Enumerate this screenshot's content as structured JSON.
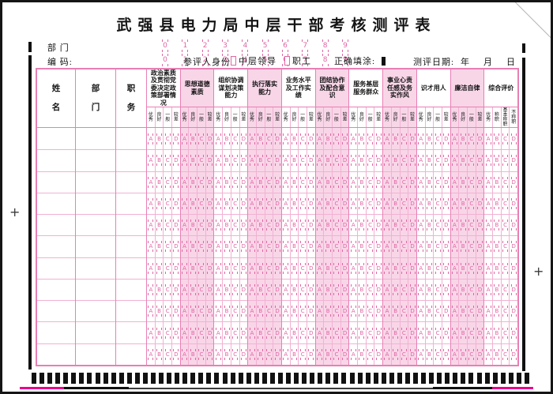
{
  "title": "武强县电力局中层干部考核测评表",
  "colors": {
    "accent_pink": "#e87fb4",
    "pink_background": "#f8d6e8",
    "bubble_pink": "#e066a4",
    "registration_magenta": "#ec008c",
    "timing_mark_black": "#111111"
  },
  "header": {
    "dept_label": "部 门",
    "code_label": "编 码:",
    "digits": [
      "0",
      "1",
      "2",
      "3",
      "4",
      "5",
      "6",
      "7",
      "8",
      "9"
    ],
    "identity_label": "参评人身份:",
    "identity_options": [
      {
        "label": "中层领导"
      },
      {
        "label": "职工"
      }
    ],
    "fill_label": "正确填涂:",
    "date_label": "测评日期:",
    "date_units": [
      "年",
      "月",
      "日"
    ]
  },
  "table": {
    "left_columns": [
      {
        "label": "姓名"
      },
      {
        "label": "部门"
      },
      {
        "label": "职务"
      }
    ],
    "left_column_widths": [
      49,
      51,
      39
    ],
    "categories": [
      {
        "name": "政治素质及贯彻党委决定政策部署情况",
        "subs": [
          "优秀",
          "良好",
          "一般",
          "较差"
        ]
      },
      {
        "name": "思想道德素质",
        "subs": [
          "优秀",
          "良好",
          "一般",
          "较差"
        ]
      },
      {
        "name": "组织协调谋划决策能力",
        "subs": [
          "优秀",
          "良好",
          "一般",
          "较差"
        ]
      },
      {
        "name": "执行落实能力",
        "subs": [
          "优秀",
          "良好",
          "一般",
          "较差"
        ]
      },
      {
        "name": "业务水平及工作实绩",
        "subs": [
          "优秀",
          "良好",
          "一般",
          "较差"
        ]
      },
      {
        "name": "团结协作及配合意识",
        "subs": [
          "优秀",
          "良好",
          "一般",
          "较差"
        ]
      },
      {
        "name": "服务基层服务群众",
        "subs": [
          "优秀",
          "良好",
          "一般",
          "较差"
        ]
      },
      {
        "name": "事业心责任感及务实作风",
        "subs": [
          "优秀",
          "良好",
          "一般",
          "较差"
        ]
      },
      {
        "name": "识才用人",
        "subs": [
          "优秀",
          "良好",
          "一般",
          "较差"
        ]
      },
      {
        "name": "廉洁自律",
        "subs": [
          "优秀",
          "良好",
          "一般",
          "较差"
        ]
      },
      {
        "name": "综合评价",
        "subs": [
          "优秀",
          "称职",
          "基本称职",
          "不称职"
        ]
      }
    ],
    "bubble_letters": [
      "A",
      "B",
      "C",
      "D"
    ],
    "row_count": 11
  },
  "print_marks": {
    "plus_symbol": "+",
    "timing_bar_count": 63
  }
}
